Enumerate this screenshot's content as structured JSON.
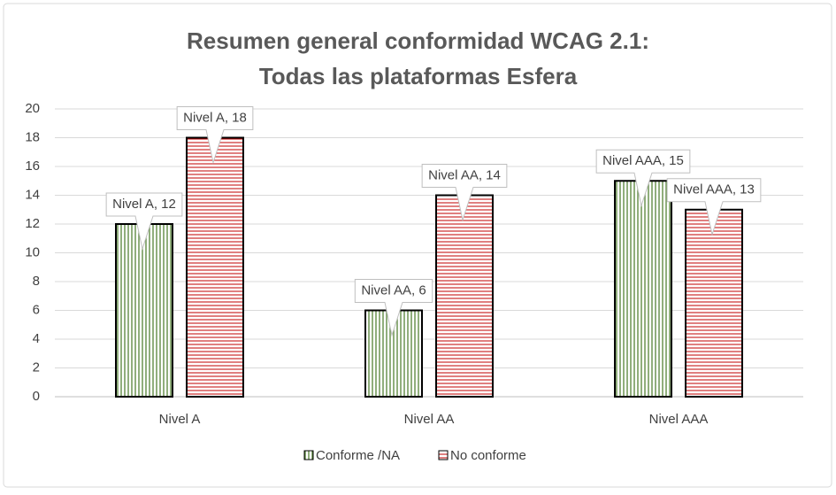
{
  "chart_data": {
    "type": "bar",
    "title": "Resumen general conformidad WCAG 2.1: Todas las plataformas Esfera",
    "categories": [
      "Nivel A",
      "Nivel AA",
      "Nivel AAA"
    ],
    "series": [
      {
        "name": "Conforme /NA",
        "color": "#548235",
        "values": [
          12,
          6,
          15
        ],
        "value_labels": [
          "Nivel A, 12",
          "Nivel AA, 6",
          "Nivel AAA, 15"
        ]
      },
      {
        "name": "No conforme",
        "color": "#c00000",
        "values": [
          18,
          14,
          13
        ],
        "value_labels": [
          "Nivel A, 18",
          "Nivel AA, 14",
          "Nivel AAA, 13"
        ]
      }
    ],
    "ylim": [
      0,
      20
    ],
    "yticks": [
      0,
      2,
      4,
      6,
      8,
      10,
      12,
      14,
      16,
      18,
      20
    ],
    "grid": true,
    "legend": "bottom"
  }
}
